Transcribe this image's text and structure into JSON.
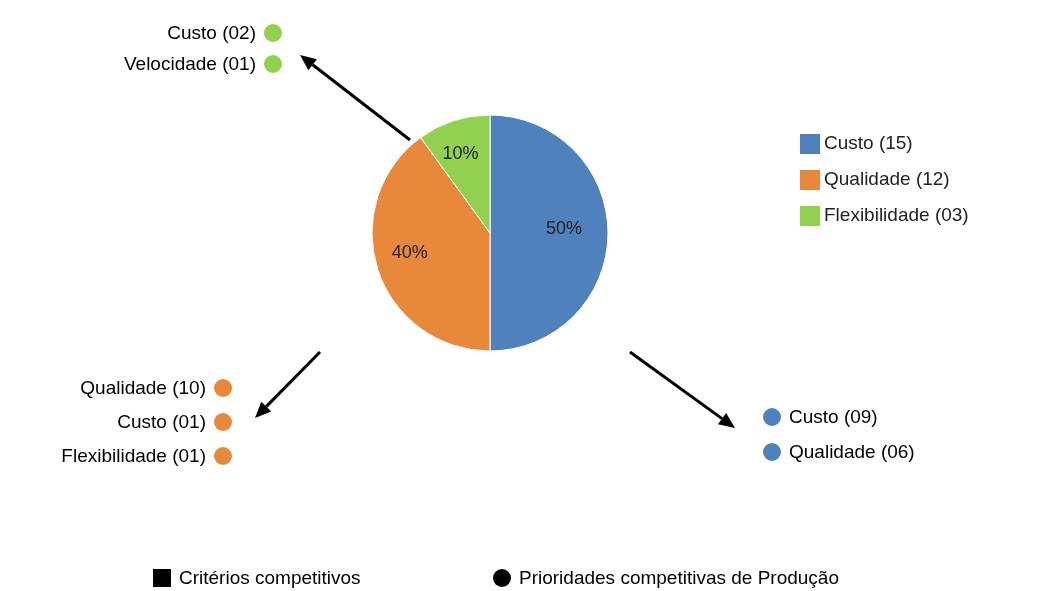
{
  "chart_data": {
    "type": "pie",
    "categories": [
      "Custo  (15)",
      "Qualidade (12)",
      "Flexibilidade (03)"
    ],
    "values": [
      50,
      40,
      10
    ],
    "colors": [
      "#4f81bd",
      "#e8883a",
      "#92d050"
    ],
    "value_labels": [
      "50%",
      "40%",
      "10%"
    ],
    "legend": "right",
    "annotations": [
      "Custo  (02)",
      "Velocidade (01)",
      "Qualidade (10)",
      "Custo  (01)",
      "Flexibilidade (01)",
      "Custo  (09)",
      "Qualidade (06)",
      "Critérios competitivos",
      "Prioridades competitivas de Produção"
    ]
  }
}
